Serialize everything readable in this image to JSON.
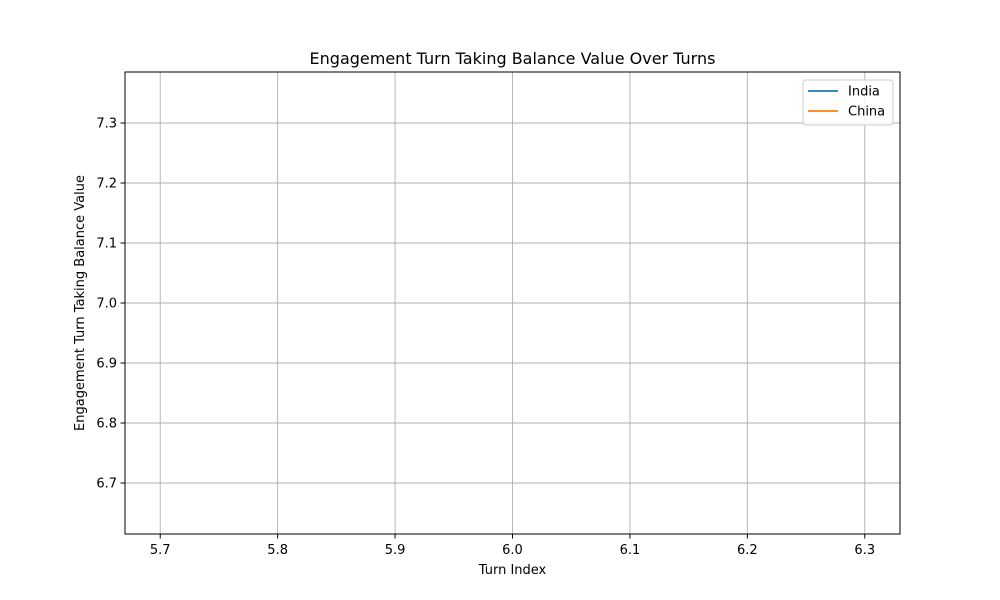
{
  "chart_data": {
    "type": "line",
    "title": "Engagement Turn Taking Balance Value Over Turns",
    "xlabel": "Turn Index",
    "ylabel": "Engagement Turn Taking Balance Value",
    "xlim": [
      5.67,
      6.33
    ],
    "ylim": [
      6.615,
      7.385
    ],
    "xticks": [
      5.7,
      5.8,
      5.9,
      6.0,
      6.1,
      6.2,
      6.3
    ],
    "xtick_labels": [
      "5.7",
      "5.8",
      "5.9",
      "6.0",
      "6.1",
      "6.2",
      "6.3"
    ],
    "yticks": [
      6.7,
      6.8,
      6.9,
      7.0,
      7.1,
      7.2,
      7.3
    ],
    "ytick_labels": [
      "6.7",
      "6.8",
      "6.9",
      "7.0",
      "7.1",
      "7.2",
      "7.3"
    ],
    "grid": true,
    "legend_position": "top-right",
    "series": [
      {
        "name": "India",
        "color": "#1f77b4",
        "x": [],
        "y": []
      },
      {
        "name": "China",
        "color": "#ff7f0e",
        "x": [],
        "y": []
      }
    ]
  }
}
